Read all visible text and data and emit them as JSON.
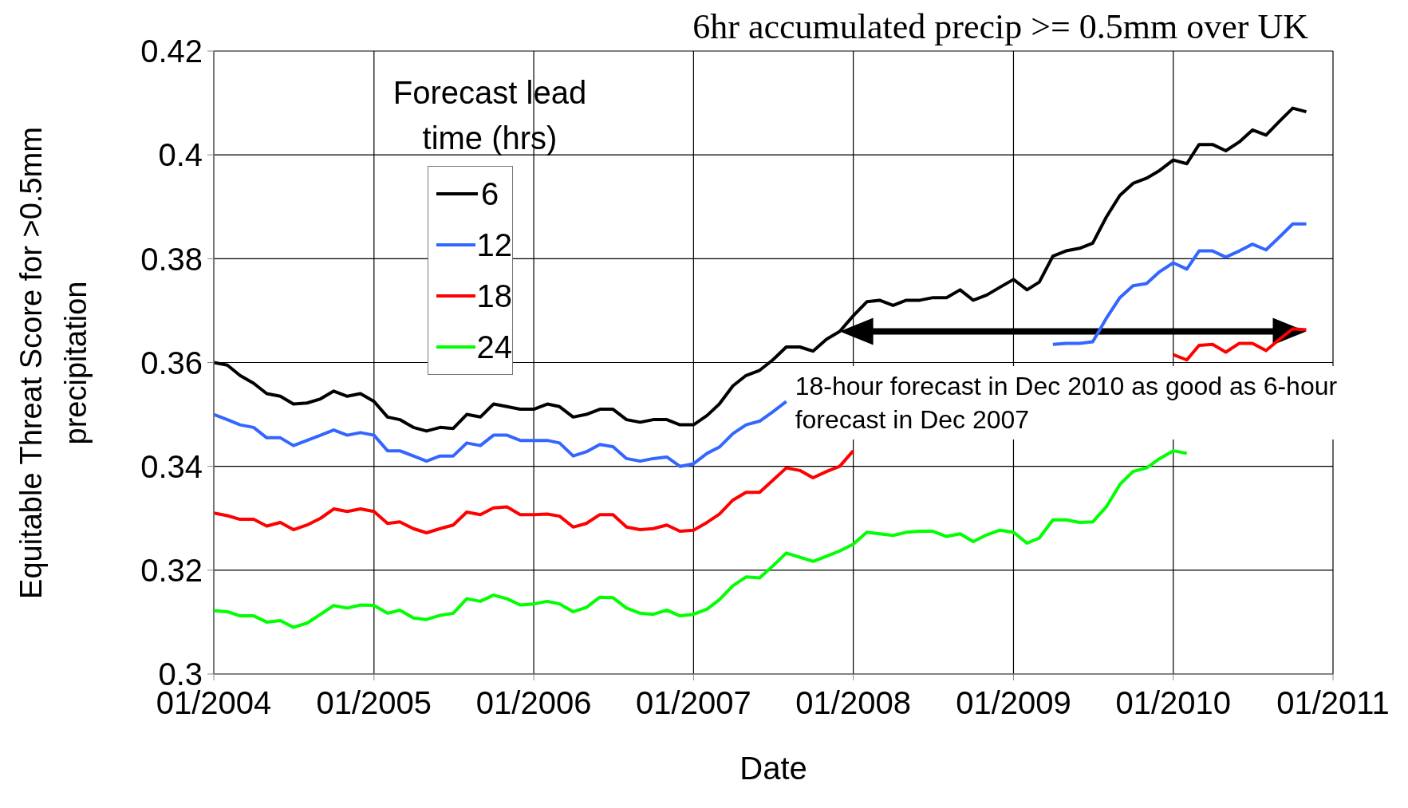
{
  "chart_data": {
    "type": "line",
    "title": "6hr accumulated precip >= 0.5mm over UK",
    "xlabel": "Date",
    "ylabel": "Equitable Threat Score for >0.5mm precipitation",
    "legend_title": "Forecast lead time (hrs)",
    "x": [
      "2004-01",
      "2004-02",
      "2004-03",
      "2004-04",
      "2004-05",
      "2004-06",
      "2004-07",
      "2004-08",
      "2004-09",
      "2004-10",
      "2004-11",
      "2004-12",
      "2005-01",
      "2005-02",
      "2005-03",
      "2005-04",
      "2005-05",
      "2005-06",
      "2005-07",
      "2005-08",
      "2005-09",
      "2005-10",
      "2005-11",
      "2005-12",
      "2006-01",
      "2006-02",
      "2006-03",
      "2006-04",
      "2006-05",
      "2006-06",
      "2006-07",
      "2006-08",
      "2006-09",
      "2006-10",
      "2006-11",
      "2006-12",
      "2007-01",
      "2007-02",
      "2007-03",
      "2007-04",
      "2007-05",
      "2007-06",
      "2007-07",
      "2007-08",
      "2007-09",
      "2007-10",
      "2007-11",
      "2007-12",
      "2008-01",
      "2008-02",
      "2008-03",
      "2008-04",
      "2008-05",
      "2008-06",
      "2008-07",
      "2008-08",
      "2008-09",
      "2008-10",
      "2008-11",
      "2008-12",
      "2009-01",
      "2009-02",
      "2009-03",
      "2009-04",
      "2009-05",
      "2009-06",
      "2009-07",
      "2009-08",
      "2009-09",
      "2009-10",
      "2009-11",
      "2009-12",
      "2010-01",
      "2010-02",
      "2010-03",
      "2010-04",
      "2010-05",
      "2010-06",
      "2010-07",
      "2010-08",
      "2010-09",
      "2010-10",
      "2010-11"
    ],
    "series": [
      {
        "name": "6",
        "color": "#000000",
        "values": [
          0.36,
          0.3595,
          0.3575,
          0.356,
          0.354,
          0.3535,
          0.352,
          0.3522,
          0.353,
          0.3545,
          0.3535,
          0.354,
          0.3525,
          0.3495,
          0.349,
          0.3475,
          0.3468,
          0.3475,
          0.3473,
          0.35,
          0.3495,
          0.352,
          0.3515,
          0.351,
          0.351,
          0.352,
          0.3515,
          0.3495,
          0.35,
          0.351,
          0.351,
          0.349,
          0.3485,
          0.349,
          0.349,
          0.348,
          0.348,
          0.3498,
          0.352,
          0.3555,
          0.3575,
          0.3585,
          0.3605,
          0.363,
          0.363,
          0.3622,
          0.3645,
          0.366,
          0.369,
          0.3717,
          0.372,
          0.371,
          0.372,
          0.372,
          0.3725,
          0.3725,
          0.374,
          0.372,
          0.373,
          0.3745,
          0.376,
          0.374,
          0.3755,
          0.3805,
          0.3815,
          0.382,
          0.383,
          0.388,
          0.3922,
          0.3945,
          0.3955,
          0.397,
          0.399,
          0.3983,
          0.402,
          0.402,
          0.4008,
          0.4025,
          0.4048,
          0.4038,
          0.4065,
          0.409,
          0.4083
        ]
      },
      {
        "name": "12",
        "color": "#3366ff",
        "values": [
          0.35,
          0.349,
          0.348,
          0.3475,
          0.3455,
          0.3455,
          0.344,
          0.345,
          0.346,
          0.347,
          0.346,
          0.3465,
          0.346,
          0.343,
          0.343,
          0.342,
          0.341,
          0.342,
          0.342,
          0.3445,
          0.344,
          0.346,
          0.346,
          0.345,
          0.345,
          0.345,
          0.3445,
          0.342,
          0.3428,
          0.3442,
          0.3438,
          0.3415,
          0.341,
          0.3415,
          0.3418,
          0.34,
          0.3405,
          0.3425,
          0.3437,
          0.3463,
          0.348,
          0.3487,
          0.3505,
          0.3525,
          null,
          null,
          null,
          null,
          null,
          null,
          null,
          null,
          null,
          null,
          null,
          null,
          null,
          null,
          null,
          null,
          null,
          null,
          null,
          0.3635,
          0.3637,
          0.3637,
          0.364,
          0.3685,
          0.3725,
          0.3748,
          0.3752,
          0.3775,
          0.3792,
          0.378,
          0.3815,
          0.3815,
          0.3803,
          0.3815,
          0.3828,
          0.3817,
          0.3842,
          0.3867,
          0.3867
        ]
      },
      {
        "name": "18",
        "color": "#ff0000",
        "values": [
          0.331,
          0.3305,
          0.3298,
          0.3298,
          0.3285,
          0.3292,
          0.3278,
          0.3287,
          0.33,
          0.3318,
          0.3313,
          0.3318,
          0.3313,
          0.329,
          0.3293,
          0.328,
          0.3272,
          0.328,
          0.3287,
          0.3312,
          0.3307,
          0.332,
          0.3322,
          0.3307,
          0.3307,
          0.3308,
          0.3304,
          0.3283,
          0.329,
          0.3307,
          0.3307,
          0.3283,
          0.3278,
          0.328,
          0.3287,
          0.3275,
          0.3277,
          0.3292,
          0.3308,
          0.3335,
          0.335,
          0.335,
          0.3373,
          0.3397,
          0.3392,
          0.3378,
          0.339,
          0.34,
          0.343,
          null,
          null,
          null,
          null,
          null,
          null,
          null,
          null,
          null,
          null,
          null,
          null,
          null,
          null,
          null,
          null,
          null,
          null,
          null,
          null,
          null,
          null,
          null,
          0.3615,
          0.3605,
          0.3633,
          0.3635,
          0.362,
          0.3637,
          0.3637,
          0.3623,
          0.3645,
          0.3665,
          0.3663
        ]
      },
      {
        "name": "24",
        "color": "#00ff00",
        "values": [
          0.3122,
          0.312,
          0.3112,
          0.3112,
          0.31,
          0.3103,
          0.309,
          0.3098,
          0.3115,
          0.3132,
          0.3127,
          0.3133,
          0.3132,
          0.3117,
          0.3123,
          0.3108,
          0.3105,
          0.3113,
          0.3117,
          0.3145,
          0.314,
          0.3152,
          0.3145,
          0.3133,
          0.3135,
          0.314,
          0.3135,
          0.312,
          0.3128,
          0.3148,
          0.3147,
          0.3127,
          0.3117,
          0.3115,
          0.3123,
          0.3112,
          0.3115,
          0.3125,
          0.3143,
          0.317,
          0.3187,
          0.3185,
          0.3208,
          0.3233,
          0.3225,
          0.3217,
          0.3227,
          0.3237,
          0.325,
          0.3273,
          0.327,
          0.3267,
          0.3273,
          0.3275,
          0.3275,
          0.3265,
          0.327,
          0.3255,
          0.3268,
          0.3277,
          0.3273,
          0.3252,
          0.3262,
          0.3297,
          0.3297,
          0.3292,
          0.3293,
          0.3322,
          0.3365,
          0.339,
          0.3397,
          0.3415,
          0.343,
          0.3425,
          null,
          null,
          null,
          null,
          null,
          null,
          null,
          null,
          null
        ]
      }
    ],
    "xlim": [
      "2004-01",
      "2011-01"
    ],
    "xticks": [
      {
        "value": "2004-01",
        "label": "01/2004"
      },
      {
        "value": "2005-01",
        "label": "01/2005"
      },
      {
        "value": "2006-01",
        "label": "01/2006"
      },
      {
        "value": "2007-01",
        "label": "01/2007"
      },
      {
        "value": "2008-01",
        "label": "01/2008"
      },
      {
        "value": "2009-01",
        "label": "01/2009"
      },
      {
        "value": "2010-01",
        "label": "01/2010"
      },
      {
        "value": "2011-01",
        "label": "01/2011"
      }
    ],
    "ylim": [
      0.3,
      0.42
    ],
    "yticks": [
      0.3,
      0.32,
      0.34,
      0.36,
      0.38,
      0.4,
      0.42
    ],
    "annotations": [
      {
        "text": "18-hour forecast in Dec 2010 as good as 6-hour forecast in Dec 2007",
        "x": "2007-12",
        "y": 0.366
      }
    ],
    "grid": true,
    "legend": "top left",
    "marker": "none",
    "line_style": "solid"
  }
}
